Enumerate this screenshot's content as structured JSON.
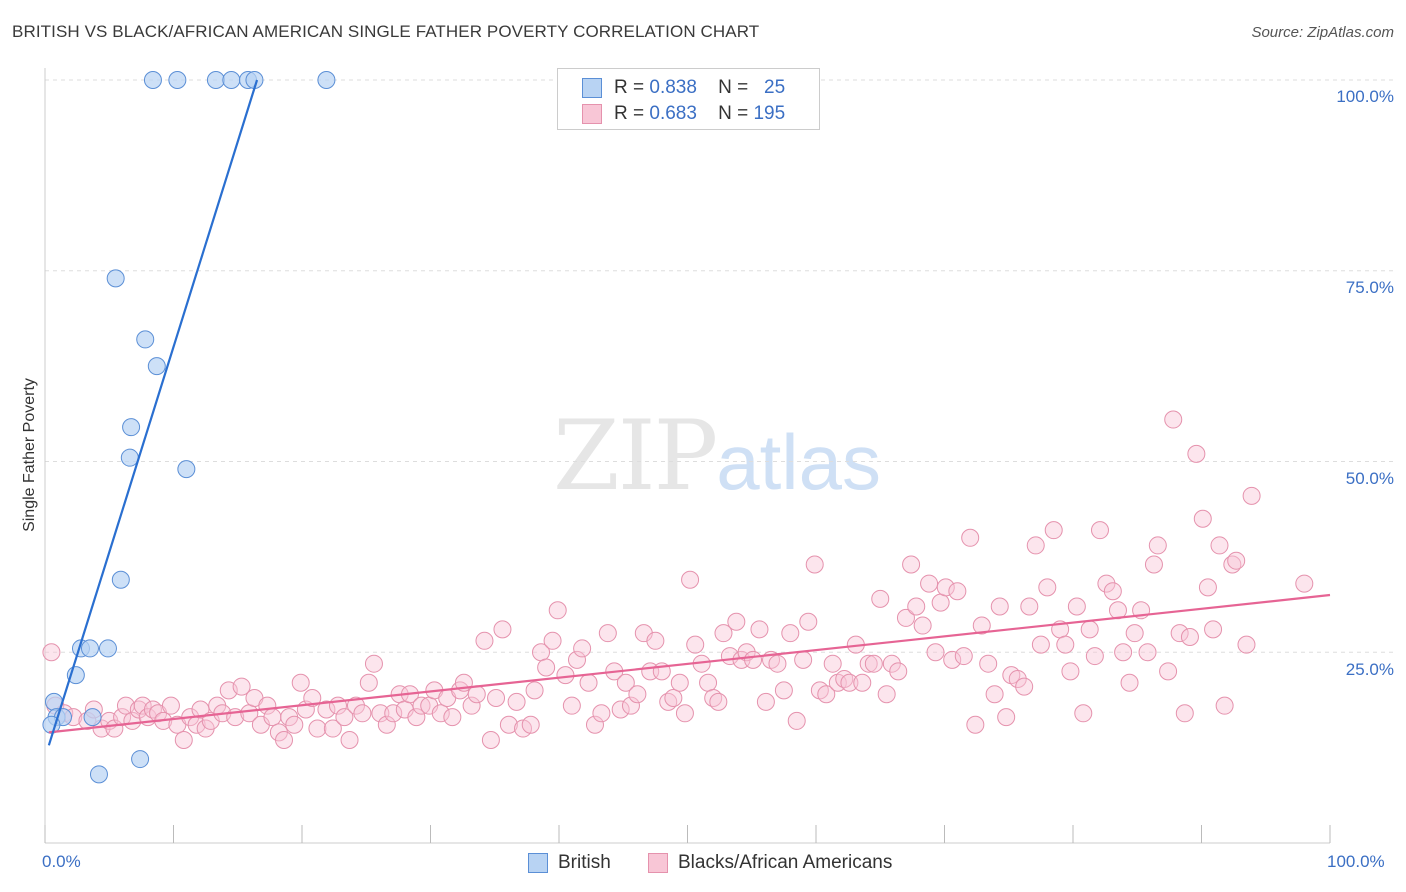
{
  "title": "BRITISH VS BLACK/AFRICAN AMERICAN SINGLE FATHER POVERTY CORRELATION CHART",
  "source": "Source: ZipAtlas.com",
  "watermark": {
    "zip": "ZIP",
    "atlas": "atlas"
  },
  "stats": {
    "british": {
      "r_label": "R =",
      "r": "0.838",
      "n_label": "N =",
      "n": "25"
    },
    "black": {
      "r_label": "R =",
      "r": "0.683",
      "n_label": "N =",
      "n": "195"
    }
  },
  "legend": {
    "british": "British",
    "black": "Blacks/African Americans"
  },
  "axis": {
    "ylabel": "Single Father Poverty",
    "x_min_label": "0.0%",
    "x_max_label": "100.0%",
    "y_ticks": [
      "100.0%",
      "75.0%",
      "50.0%",
      "25.0%"
    ]
  },
  "colors": {
    "british_fill": "#b8d3f3",
    "british_edge": "#5b8fd6",
    "british_line": "#2a6fd0",
    "black_fill": "#f8c6d6",
    "black_edge": "#e592ad",
    "black_line": "#e66494",
    "grid": "#dddddd",
    "tick_text": "#3b6fc4"
  },
  "chart_data": {
    "type": "scatter",
    "title": "BRITISH VS BLACK/AFRICAN AMERICAN SINGLE FATHER POVERTY CORRELATION CHART",
    "xlabel": "",
    "ylabel": "Single Father Poverty",
    "xlim": [
      0,
      100
    ],
    "ylim": [
      0,
      100
    ],
    "y_gridlines": [
      25,
      50,
      75,
      100
    ],
    "legend_position": "bottom-center",
    "series": [
      {
        "name": "British",
        "r": 0.838,
        "n": 25,
        "trend": {
          "x": [
            0.3,
            16.5
          ],
          "y": [
            12.8,
            100
          ]
        },
        "points": [
          [
            8.4,
            100
          ],
          [
            10.3,
            100
          ],
          [
            13.3,
            100
          ],
          [
            14.5,
            100
          ],
          [
            15.8,
            100
          ],
          [
            16.3,
            100
          ],
          [
            21.9,
            100
          ],
          [
            5.5,
            74
          ],
          [
            7.8,
            66
          ],
          [
            8.7,
            62.5
          ],
          [
            6.7,
            54.5
          ],
          [
            6.6,
            50.5
          ],
          [
            11.0,
            49
          ],
          [
            5.9,
            34.5
          ],
          [
            2.8,
            25.5
          ],
          [
            3.5,
            25.5
          ],
          [
            4.9,
            25.5
          ],
          [
            2.4,
            22
          ],
          [
            0.7,
            18.5
          ],
          [
            0.9,
            16.5
          ],
          [
            1.4,
            16.5
          ],
          [
            3.7,
            16.5
          ],
          [
            0.5,
            15.5
          ],
          [
            4.2,
            9
          ],
          [
            7.4,
            11
          ]
        ]
      },
      {
        "name": "Blacks/African Americans",
        "r": 0.683,
        "n": 195,
        "trend": {
          "x": [
            0.3,
            100
          ],
          "y": [
            14.5,
            32.5
          ]
        },
        "points": [
          [
            0.5,
            25
          ],
          [
            0.8,
            18
          ],
          [
            1.5,
            17
          ],
          [
            2.2,
            16.5
          ],
          [
            3.3,
            16
          ],
          [
            3.8,
            17.5
          ],
          [
            4.4,
            15
          ],
          [
            5.0,
            16
          ],
          [
            5.4,
            15
          ],
          [
            6.0,
            16.5
          ],
          [
            6.3,
            18
          ],
          [
            6.8,
            16
          ],
          [
            7.3,
            17.5
          ],
          [
            7.6,
            18
          ],
          [
            8.0,
            16.5
          ],
          [
            8.4,
            17.5
          ],
          [
            8.8,
            17
          ],
          [
            9.2,
            16
          ],
          [
            9.8,
            18
          ],
          [
            10.3,
            15.5
          ],
          [
            10.8,
            13.5
          ],
          [
            11.3,
            16.5
          ],
          [
            11.8,
            15.5
          ],
          [
            12.1,
            17.5
          ],
          [
            12.5,
            15
          ],
          [
            12.9,
            16
          ],
          [
            13.4,
            18
          ],
          [
            13.8,
            17
          ],
          [
            14.3,
            20
          ],
          [
            14.8,
            16.5
          ],
          [
            15.3,
            20.5
          ],
          [
            15.9,
            17
          ],
          [
            16.3,
            19
          ],
          [
            16.8,
            15.5
          ],
          [
            17.3,
            18
          ],
          [
            17.7,
            16.5
          ],
          [
            18.2,
            14.5
          ],
          [
            18.6,
            13.5
          ],
          [
            19.0,
            16.5
          ],
          [
            19.4,
            15.5
          ],
          [
            19.9,
            21
          ],
          [
            20.3,
            17.5
          ],
          [
            20.8,
            19
          ],
          [
            21.2,
            15
          ],
          [
            21.9,
            17.5
          ],
          [
            22.4,
            15
          ],
          [
            22.8,
            18
          ],
          [
            23.3,
            16.5
          ],
          [
            23.7,
            13.5
          ],
          [
            24.2,
            18
          ],
          [
            24.7,
            17
          ],
          [
            25.2,
            21
          ],
          [
            25.6,
            23.5
          ],
          [
            26.1,
            17
          ],
          [
            26.6,
            15.5
          ],
          [
            27.1,
            17
          ],
          [
            27.6,
            19.5
          ],
          [
            28.0,
            17.5
          ],
          [
            28.4,
            19.5
          ],
          [
            28.9,
            16.5
          ],
          [
            29.3,
            18
          ],
          [
            29.9,
            18
          ],
          [
            30.3,
            20
          ],
          [
            30.8,
            17
          ],
          [
            31.3,
            19
          ],
          [
            31.7,
            16.5
          ],
          [
            32.3,
            20
          ],
          [
            32.6,
            21
          ],
          [
            33.2,
            18
          ],
          [
            33.6,
            19.5
          ],
          [
            34.2,
            26.5
          ],
          [
            34.7,
            13.5
          ],
          [
            35.1,
            19
          ],
          [
            35.6,
            28
          ],
          [
            36.1,
            15.5
          ],
          [
            36.7,
            18.5
          ],
          [
            37.2,
            15
          ],
          [
            37.8,
            15.5
          ],
          [
            38.1,
            20
          ],
          [
            38.6,
            25
          ],
          [
            39.0,
            23
          ],
          [
            39.5,
            26.5
          ],
          [
            39.9,
            30.5
          ],
          [
            40.5,
            22
          ],
          [
            41.0,
            18
          ],
          [
            41.4,
            24
          ],
          [
            41.8,
            25.5
          ],
          [
            42.3,
            21
          ],
          [
            42.8,
            15.5
          ],
          [
            43.3,
            17
          ],
          [
            43.8,
            27.5
          ],
          [
            44.3,
            22.5
          ],
          [
            44.8,
            17.5
          ],
          [
            45.2,
            21
          ],
          [
            45.6,
            18
          ],
          [
            46.1,
            19.5
          ],
          [
            46.6,
            27.5
          ],
          [
            47.1,
            22.5
          ],
          [
            47.5,
            26.5
          ],
          [
            48.0,
            22.5
          ],
          [
            48.5,
            18.5
          ],
          [
            48.9,
            19
          ],
          [
            49.4,
            21
          ],
          [
            49.8,
            17
          ],
          [
            50.2,
            34.5
          ],
          [
            50.6,
            26
          ],
          [
            51.1,
            23.5
          ],
          [
            51.6,
            21
          ],
          [
            52.0,
            19
          ],
          [
            52.4,
            18.5
          ],
          [
            52.8,
            27.5
          ],
          [
            53.3,
            24.5
          ],
          [
            53.8,
            29
          ],
          [
            54.2,
            24
          ],
          [
            54.6,
            25
          ],
          [
            55.1,
            24
          ],
          [
            55.6,
            28
          ],
          [
            56.1,
            18.5
          ],
          [
            56.5,
            24
          ],
          [
            57.0,
            23.5
          ],
          [
            57.5,
            20
          ],
          [
            58.0,
            27.5
          ],
          [
            58.5,
            16
          ],
          [
            59.0,
            24
          ],
          [
            59.4,
            29
          ],
          [
            59.9,
            36.5
          ],
          [
            60.3,
            20
          ],
          [
            60.8,
            19.5
          ],
          [
            61.3,
            23.5
          ],
          [
            61.7,
            21
          ],
          [
            62.2,
            21.5
          ],
          [
            62.6,
            21
          ],
          [
            63.1,
            26
          ],
          [
            63.6,
            21
          ],
          [
            64.1,
            23.5
          ],
          [
            64.5,
            23.5
          ],
          [
            65.0,
            32
          ],
          [
            65.5,
            19.5
          ],
          [
            65.9,
            23.5
          ],
          [
            66.4,
            22.5
          ],
          [
            67.0,
            29.5
          ],
          [
            67.4,
            36.5
          ],
          [
            67.8,
            31
          ],
          [
            68.3,
            28.5
          ],
          [
            68.8,
            34
          ],
          [
            69.3,
            25
          ],
          [
            69.7,
            31.5
          ],
          [
            70.1,
            33.5
          ],
          [
            70.6,
            24
          ],
          [
            71.0,
            33
          ],
          [
            71.5,
            24.5
          ],
          [
            72.0,
            40
          ],
          [
            72.4,
            15.5
          ],
          [
            72.9,
            28.5
          ],
          [
            73.4,
            23.5
          ],
          [
            73.9,
            19.5
          ],
          [
            74.3,
            31
          ],
          [
            74.8,
            16.5
          ],
          [
            75.2,
            22
          ],
          [
            75.7,
            21.5
          ],
          [
            76.2,
            20.5
          ],
          [
            76.6,
            31
          ],
          [
            77.1,
            39
          ],
          [
            77.5,
            26
          ],
          [
            78.0,
            33.5
          ],
          [
            78.5,
            41
          ],
          [
            79.0,
            28
          ],
          [
            79.4,
            26
          ],
          [
            79.8,
            22.5
          ],
          [
            80.3,
            31
          ],
          [
            80.8,
            17
          ],
          [
            81.3,
            28
          ],
          [
            81.7,
            24.5
          ],
          [
            82.1,
            41
          ],
          [
            82.6,
            34
          ],
          [
            83.1,
            33
          ],
          [
            83.5,
            30.5
          ],
          [
            83.9,
            25
          ],
          [
            84.4,
            21
          ],
          [
            84.8,
            27.5
          ],
          [
            85.3,
            30.5
          ],
          [
            85.8,
            25
          ],
          [
            86.3,
            36.5
          ],
          [
            86.6,
            39
          ],
          [
            87.4,
            22.5
          ],
          [
            87.8,
            55.5
          ],
          [
            88.3,
            27.5
          ],
          [
            88.7,
            17
          ],
          [
            89.1,
            27
          ],
          [
            89.6,
            51
          ],
          [
            90.1,
            42.5
          ],
          [
            90.5,
            33.5
          ],
          [
            90.9,
            28
          ],
          [
            91.4,
            39
          ],
          [
            91.8,
            18
          ],
          [
            92.4,
            36.5
          ],
          [
            92.7,
            37
          ],
          [
            93.5,
            26
          ],
          [
            93.9,
            45.5
          ],
          [
            98.0,
            34
          ]
        ]
      }
    ]
  }
}
